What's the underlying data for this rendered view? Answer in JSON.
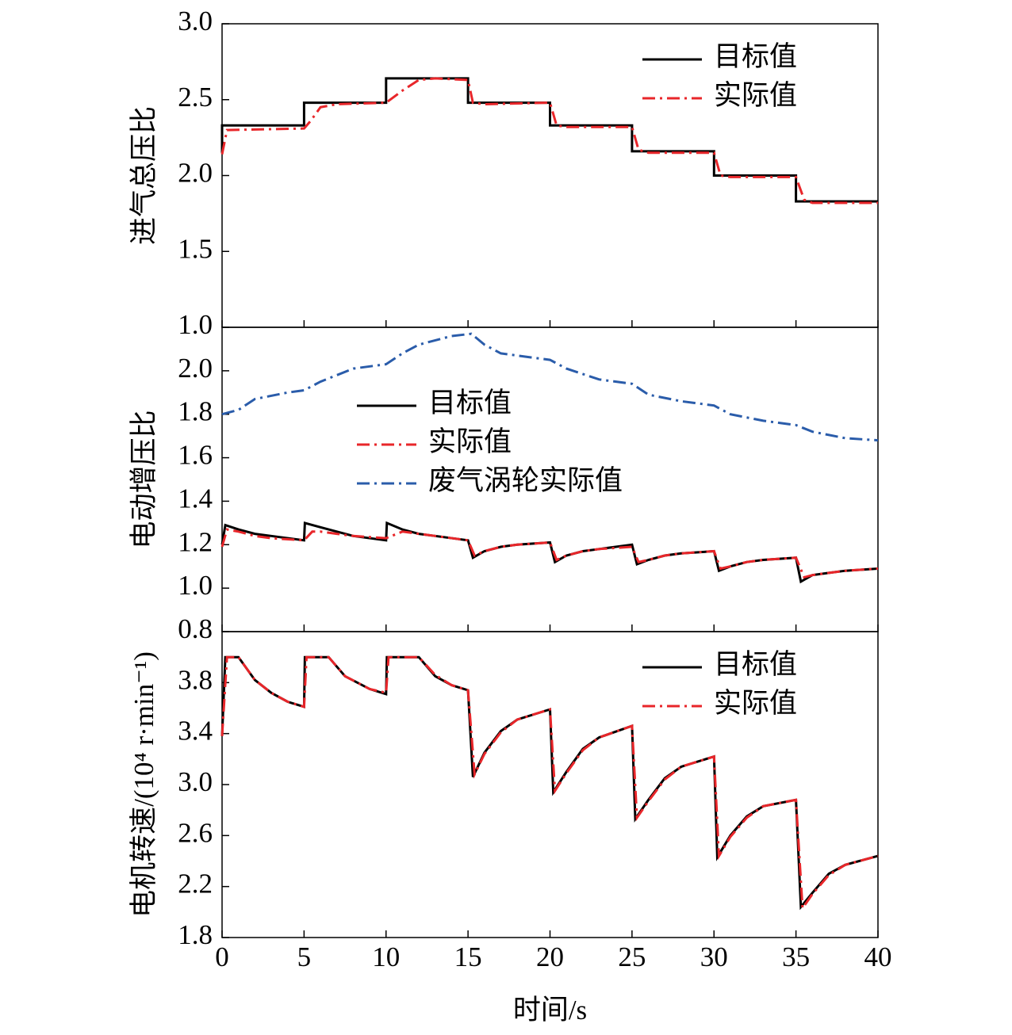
{
  "chart_data": [
    {
      "type": "line",
      "ylabel": "进气总压比",
      "legend": "upper right",
      "ylim": [
        1.0,
        3.0
      ],
      "yticks": [
        {
          "value": 1.0,
          "label": "1.0"
        },
        1.5,
        {
          "value": 2.0,
          "label": "2.0"
        },
        2.5,
        {
          "value": 3.0,
          "label": "3.0"
        }
      ],
      "xlim": [
        0,
        40
      ],
      "xticks": [
        0,
        5,
        10,
        15,
        20,
        25,
        30,
        35,
        40
      ],
      "series": [
        {
          "name": "目标值",
          "color": "#000000",
          "dash": "solid",
          "x": [
            0,
            0,
            5,
            5,
            10,
            10,
            15,
            15,
            20,
            20,
            25,
            25,
            30,
            30,
            35,
            35,
            40
          ],
          "values": [
            2.15,
            2.33,
            2.33,
            2.48,
            2.48,
            2.64,
            2.64,
            2.48,
            2.48,
            2.33,
            2.33,
            2.16,
            2.16,
            2.0,
            2.0,
            1.83,
            1.83
          ]
        },
        {
          "name": "实际值",
          "color": "#e8262a",
          "dash": "dashdot",
          "x": [
            0,
            0.3,
            5,
            5.4,
            6,
            7,
            10,
            11,
            12,
            13,
            15,
            15.3,
            16,
            20,
            20.4,
            21,
            25,
            25.4,
            26,
            30,
            30.4,
            31,
            35,
            35.5,
            36,
            40
          ],
          "values": [
            2.14,
            2.3,
            2.31,
            2.36,
            2.45,
            2.47,
            2.48,
            2.56,
            2.63,
            2.64,
            2.63,
            2.48,
            2.47,
            2.48,
            2.33,
            2.32,
            2.32,
            2.17,
            2.15,
            2.15,
            2.0,
            1.99,
            1.99,
            1.84,
            1.82,
            1.82
          ]
        }
      ]
    },
    {
      "type": "line",
      "ylabel": "电动增压比",
      "legend": "upper center",
      "ylim": [
        0.8,
        2.2
      ],
      "yticks": [
        0.8,
        {
          "value": 1.0,
          "label": "1.0"
        },
        1.2,
        1.4,
        1.6,
        1.8,
        {
          "value": 2.0,
          "label": "2.0"
        }
      ],
      "xlim": [
        0,
        40
      ],
      "xticks": [
        0,
        5,
        10,
        15,
        20,
        25,
        30,
        35,
        40
      ],
      "series": [
        {
          "name": "目标值",
          "color": "#000000",
          "dash": "solid",
          "x": [
            0,
            0.2,
            1,
            2,
            3,
            5,
            5.05,
            6,
            7,
            8,
            10,
            10.05,
            11,
            12,
            13,
            15,
            15.3,
            16,
            17,
            18,
            20,
            20.3,
            21,
            22,
            23,
            25,
            25.3,
            26,
            27,
            28,
            30,
            30.3,
            31,
            32,
            33,
            35,
            35.3,
            36,
            37,
            38,
            40
          ],
          "values": [
            1.2,
            1.29,
            1.27,
            1.25,
            1.24,
            1.22,
            1.3,
            1.28,
            1.26,
            1.24,
            1.22,
            1.3,
            1.27,
            1.25,
            1.24,
            1.22,
            1.14,
            1.17,
            1.19,
            1.2,
            1.21,
            1.12,
            1.15,
            1.17,
            1.18,
            1.2,
            1.11,
            1.13,
            1.15,
            1.16,
            1.17,
            1.08,
            1.1,
            1.12,
            1.13,
            1.14,
            1.03,
            1.06,
            1.07,
            1.08,
            1.09
          ]
        },
        {
          "name": "实际值",
          "color": "#e8262a",
          "dash": "dashdot",
          "x": [
            0,
            0.3,
            1,
            2,
            3,
            5,
            5.5,
            6,
            7,
            8,
            10,
            11,
            12,
            13,
            15,
            15.4,
            16,
            17,
            18,
            20,
            20.4,
            21,
            22,
            23,
            25,
            25.4,
            26,
            27,
            28,
            30,
            30.4,
            31,
            32,
            33,
            35,
            35.5,
            36,
            37,
            38,
            40
          ],
          "values": [
            1.19,
            1.27,
            1.26,
            1.24,
            1.23,
            1.22,
            1.26,
            1.26,
            1.25,
            1.24,
            1.23,
            1.26,
            1.25,
            1.24,
            1.22,
            1.15,
            1.17,
            1.19,
            1.2,
            1.21,
            1.13,
            1.15,
            1.17,
            1.18,
            1.19,
            1.12,
            1.13,
            1.15,
            1.16,
            1.17,
            1.09,
            1.1,
            1.12,
            1.13,
            1.14,
            1.05,
            1.06,
            1.07,
            1.08,
            1.09
          ]
        },
        {
          "name": "废气涡轮实际值",
          "color": "#2a5caa",
          "dash": "dashdot",
          "x": [
            0,
            1,
            2,
            4,
            5,
            6,
            8,
            10,
            11,
            12,
            14,
            15.2,
            16,
            17,
            19,
            20,
            21,
            23,
            25,
            26,
            28,
            30,
            31,
            33,
            35,
            36,
            38,
            40
          ],
          "values": [
            1.8,
            1.82,
            1.87,
            1.9,
            1.91,
            1.95,
            2.01,
            2.03,
            2.08,
            2.12,
            2.16,
            2.17,
            2.12,
            2.08,
            2.06,
            2.05,
            2.01,
            1.96,
            1.94,
            1.89,
            1.86,
            1.84,
            1.8,
            1.77,
            1.75,
            1.72,
            1.69,
            1.68
          ]
        }
      ]
    },
    {
      "type": "line",
      "ylabel": "电机转速/(10⁴ r·min⁻¹)",
      "xlabel": "时间/s",
      "legend": "upper right",
      "ylim": [
        1.8,
        4.2
      ],
      "yticks": [
        1.8,
        2.2,
        2.6,
        {
          "value": 3.0,
          "label": "3.0"
        },
        3.4,
        3.8
      ],
      "xlim": [
        0,
        40
      ],
      "xticks": [
        0,
        5,
        10,
        15,
        20,
        25,
        30,
        35,
        40
      ],
      "series": [
        {
          "name": "目标值",
          "color": "#000000",
          "dash": "solid",
          "x": [
            0,
            0.2,
            1,
            2,
            3,
            4,
            5,
            5.05,
            6.5,
            7.5,
            9,
            10,
            10.05,
            12,
            13,
            14,
            15,
            15.3,
            16,
            17,
            18,
            20,
            20.2,
            21,
            22,
            23,
            25,
            25.2,
            26,
            27,
            28,
            30,
            30.2,
            31,
            32,
            33,
            35,
            35.3,
            36,
            37,
            38,
            40
          ],
          "values": [
            3.38,
            4.0,
            4.0,
            3.82,
            3.72,
            3.65,
            3.61,
            4.0,
            4.0,
            3.85,
            3.75,
            3.71,
            4.0,
            4.0,
            3.85,
            3.78,
            3.74,
            3.06,
            3.25,
            3.42,
            3.51,
            3.59,
            2.94,
            3.1,
            3.28,
            3.37,
            3.46,
            2.73,
            2.88,
            3.05,
            3.14,
            3.22,
            2.43,
            2.6,
            2.75,
            2.83,
            2.88,
            2.04,
            2.15,
            2.3,
            2.37,
            2.44
          ]
        },
        {
          "name": "实际值",
          "color": "#e8262a",
          "dash": "dashdot",
          "x": [
            0,
            0.3,
            1,
            2,
            3,
            4,
            5,
            5.15,
            6.5,
            7.5,
            9,
            10,
            10.15,
            12,
            13,
            14,
            15,
            15.4,
            16,
            17,
            18,
            20,
            20.3,
            21,
            22,
            23,
            25,
            25.3,
            26,
            27,
            28,
            30,
            30.3,
            31,
            32,
            33,
            35,
            35.4,
            36,
            37,
            38,
            40
          ],
          "values": [
            3.38,
            4.0,
            4.0,
            3.82,
            3.72,
            3.65,
            3.61,
            4.0,
            4.0,
            3.85,
            3.75,
            3.72,
            4.0,
            4.0,
            3.86,
            3.78,
            3.74,
            3.08,
            3.24,
            3.41,
            3.51,
            3.59,
            2.95,
            3.09,
            3.27,
            3.37,
            3.46,
            2.74,
            2.87,
            3.04,
            3.14,
            3.22,
            2.44,
            2.59,
            2.74,
            2.83,
            2.88,
            2.03,
            2.14,
            2.29,
            2.37,
            2.44
          ]
        }
      ]
    }
  ]
}
